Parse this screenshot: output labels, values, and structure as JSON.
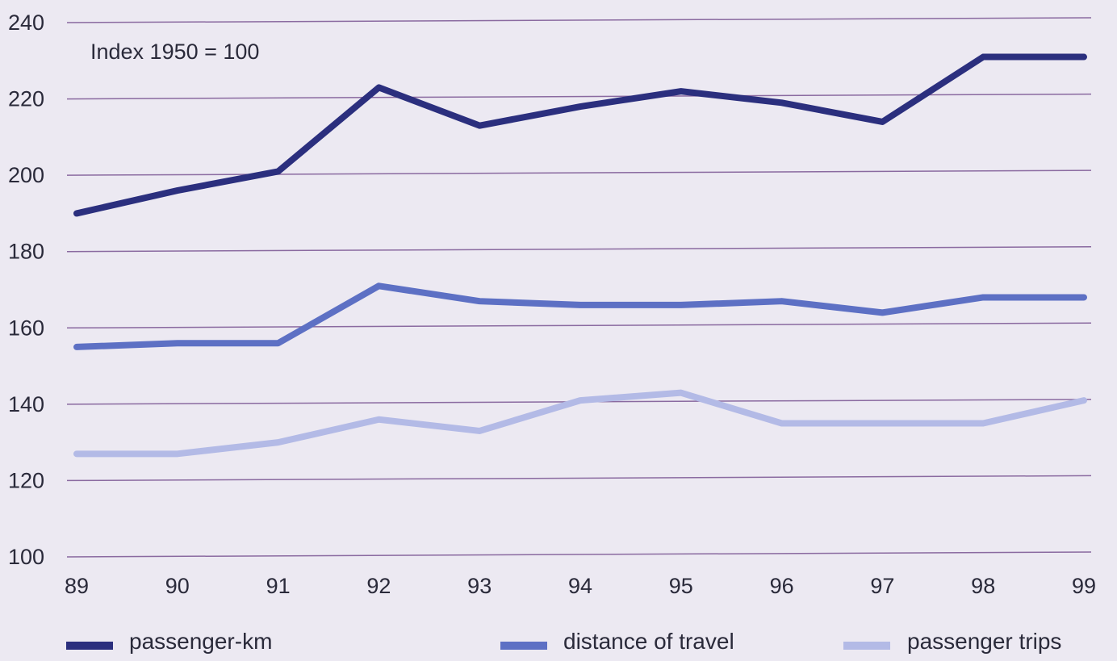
{
  "chart_data": {
    "type": "line",
    "annotation": "Index 1950 = 100",
    "categories": [
      "89",
      "90",
      "91",
      "92",
      "93",
      "94",
      "95",
      "96",
      "97",
      "98",
      "99"
    ],
    "y_ticks": [
      "100",
      "120",
      "140",
      "160",
      "180",
      "200",
      "220",
      "240"
    ],
    "ylim": [
      100,
      240
    ],
    "grid": true,
    "legend_position": "bottom",
    "series": [
      {
        "name": "passenger-km",
        "color": "#2b2f7e",
        "values": [
          190,
          196,
          201,
          223,
          213,
          218,
          222,
          219,
          214,
          231,
          231
        ]
      },
      {
        "name": "distance of travel",
        "color": "#5d70c4",
        "values": [
          155,
          156,
          156,
          171,
          167,
          166,
          166,
          167,
          164,
          168,
          168
        ]
      },
      {
        "name": "passenger trips",
        "color": "#b3bae6",
        "values": [
          127,
          127,
          130,
          136,
          133,
          141,
          143,
          135,
          135,
          135,
          141
        ]
      }
    ]
  }
}
